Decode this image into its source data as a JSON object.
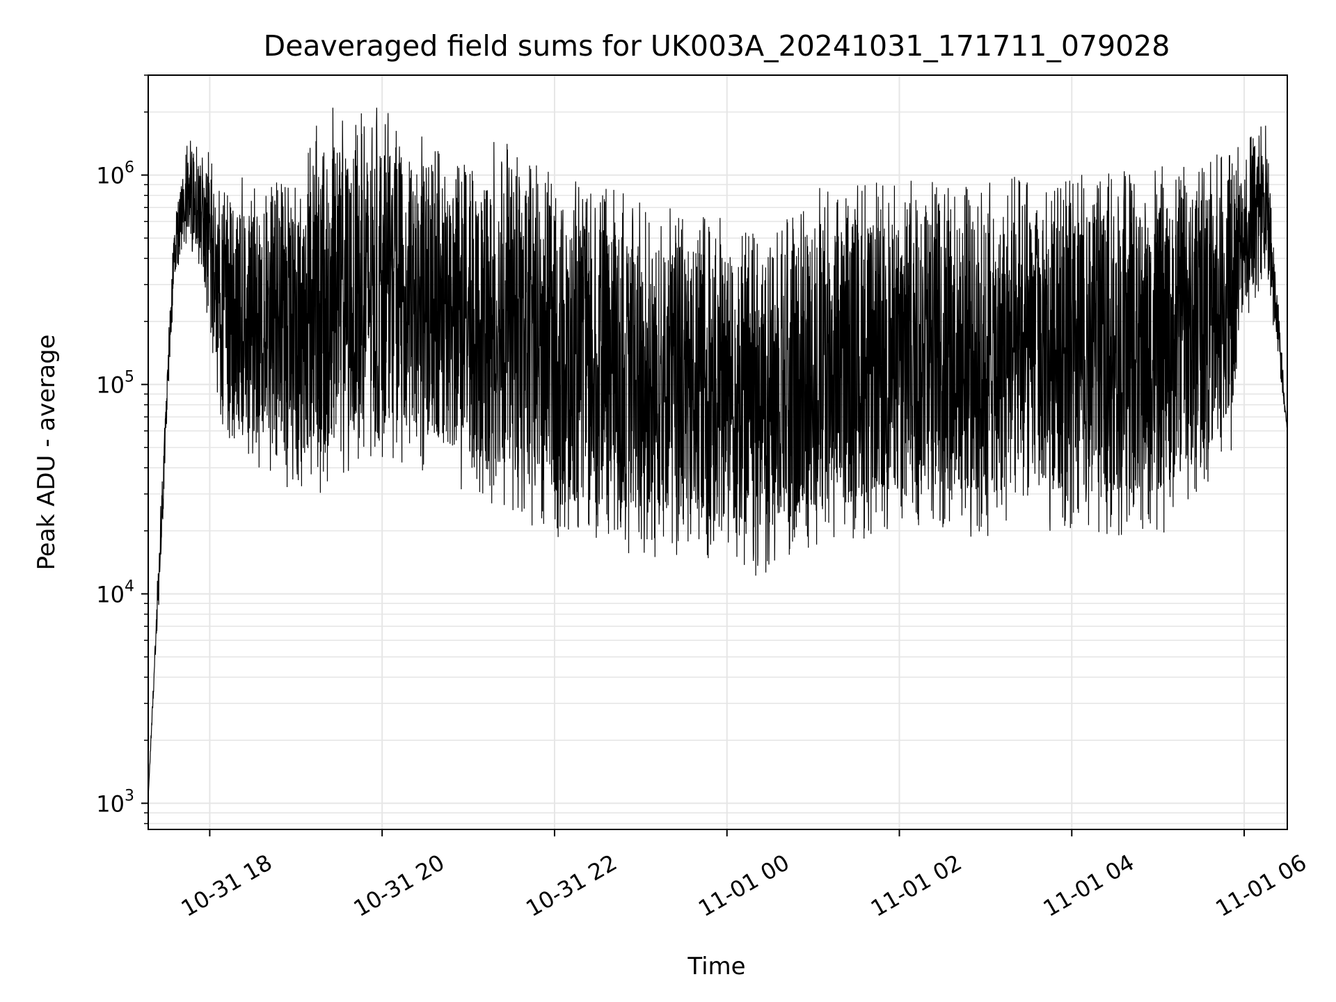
{
  "chart_data": {
    "type": "line",
    "title": "Deaveraged field sums for UK003A_20241031_171711_079028",
    "xlabel": "Time",
    "ylabel": "Peak ADU - average",
    "x_axis": {
      "kind": "datetime",
      "range": [
        "2024-10-31T17:17:11",
        "2024-11-01T06:30:00"
      ],
      "ticks": [
        {
          "value": "2024-10-31T18:00",
          "label": "10-31 18"
        },
        {
          "value": "2024-10-31T20:00",
          "label": "10-31 20"
        },
        {
          "value": "2024-10-31T22:00",
          "label": "10-31 22"
        },
        {
          "value": "2024-11-01T00:00",
          "label": "11-01 00"
        },
        {
          "value": "2024-11-01T02:00",
          "label": "11-01 02"
        },
        {
          "value": "2024-11-01T04:00",
          "label": "11-01 04"
        },
        {
          "value": "2024-11-01T06:00",
          "label": "11-01 06"
        }
      ],
      "tick_label_rotation_deg": 30
    },
    "y_axis": {
      "scale": "log",
      "range": [
        750,
        3000000
      ],
      "ticks": [
        {
          "value": 1000,
          "base": "10",
          "exp": "3"
        },
        {
          "value": 10000,
          "base": "10",
          "exp": "4"
        },
        {
          "value": 100000,
          "base": "10",
          "exp": "5"
        },
        {
          "value": 1000000,
          "base": "10",
          "exp": "6"
        }
      ]
    },
    "grid": true,
    "grid_color": "#e6e6e6",
    "line_color": "#000000",
    "series": [
      {
        "envelope": [
          {
            "t": "2024-10-31T17:17",
            "low": 1000,
            "high": 1000
          },
          {
            "t": "2024-10-31T17:25",
            "low": 10000,
            "high": 20000
          },
          {
            "t": "2024-10-31T17:35",
            "low": 300000,
            "high": 600000
          },
          {
            "t": "2024-10-31T17:45",
            "low": 500000,
            "high": 1500000
          },
          {
            "t": "2024-10-31T18:00",
            "low": 180000,
            "high": 1300000
          },
          {
            "t": "2024-10-31T18:10",
            "low": 50000,
            "high": 1000000
          },
          {
            "t": "2024-10-31T19:00",
            "low": 30000,
            "high": 1000000
          },
          {
            "t": "2024-10-31T19:20",
            "low": 30000,
            "high": 2200000
          },
          {
            "t": "2024-10-31T20:00",
            "low": 45000,
            "high": 2100000
          },
          {
            "t": "2024-10-31T21:00",
            "low": 30000,
            "high": 1100000
          },
          {
            "t": "2024-10-31T21:20",
            "low": 25000,
            "high": 1600000
          },
          {
            "t": "2024-10-31T22:00",
            "low": 18000,
            "high": 1000000
          },
          {
            "t": "2024-10-31T23:00",
            "low": 15000,
            "high": 800000
          },
          {
            "t": "2024-11-01T00:00",
            "low": 14000,
            "high": 650000
          },
          {
            "t": "2024-11-01T00:20",
            "low": 12000,
            "high": 600000
          },
          {
            "t": "2024-11-01T01:00",
            "low": 16000,
            "high": 900000
          },
          {
            "t": "2024-11-01T02:00",
            "low": 20000,
            "high": 950000
          },
          {
            "t": "2024-11-01T03:00",
            "low": 18000,
            "high": 1000000
          },
          {
            "t": "2024-11-01T04:00",
            "low": 20000,
            "high": 1000000
          },
          {
            "t": "2024-11-01T05:00",
            "low": 18000,
            "high": 1100000
          },
          {
            "t": "2024-11-01T05:50",
            "low": 40000,
            "high": 1300000
          },
          {
            "t": "2024-11-01T06:00",
            "low": 200000,
            "high": 1500000
          },
          {
            "t": "2024-11-01T06:15",
            "low": 300000,
            "high": 1800000
          },
          {
            "t": "2024-11-01T06:30",
            "low": 60000,
            "high": 60000
          }
        ]
      }
    ]
  }
}
